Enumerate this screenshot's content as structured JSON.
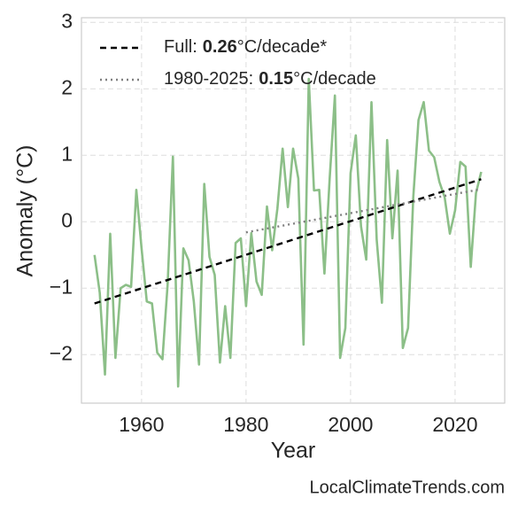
{
  "chart_data": {
    "type": "line",
    "xlabel": "Year",
    "ylabel": "Anomaly (°C)",
    "watermark": "LocalClimateTrends.com",
    "xlim": [
      1948.5,
      2029.5
    ],
    "ylim": [
      -2.73,
      3.07
    ],
    "xticks": [
      1960,
      1980,
      2000,
      2020
    ],
    "yticks": [
      {
        "value": -2,
        "label": "−2"
      },
      {
        "value": -1,
        "label": "−1"
      },
      0,
      1,
      2,
      3
    ],
    "grid": true,
    "x": [
      1951,
      1952,
      1953,
      1954,
      1955,
      1956,
      1957,
      1958,
      1959,
      1960,
      1961,
      1962,
      1963,
      1964,
      1965,
      1966,
      1967,
      1968,
      1969,
      1970,
      1971,
      1972,
      1973,
      1974,
      1975,
      1976,
      1977,
      1978,
      1979,
      1980,
      1981,
      1982,
      1983,
      1984,
      1985,
      1986,
      1987,
      1988,
      1989,
      1990,
      1991,
      1992,
      1993,
      1994,
      1995,
      1996,
      1997,
      1998,
      1999,
      2000,
      2001,
      2002,
      2003,
      2004,
      2005,
      2006,
      2007,
      2008,
      2009,
      2010,
      2011,
      2012,
      2013,
      2014,
      2015,
      2016,
      2017,
      2018,
      2019,
      2020,
      2021,
      2022,
      2023,
      2024,
      2025
    ],
    "series": [
      {
        "color": "#8cbf88",
        "values": [
          -0.5,
          -1.07,
          -2.3,
          -0.18,
          -2.05,
          -1.0,
          -0.95,
          -0.98,
          0.48,
          -0.4,
          -1.2,
          -1.23,
          -1.97,
          -2.07,
          -0.93,
          0.98,
          -2.48,
          -0.4,
          -0.58,
          -1.2,
          -2.15,
          0.57,
          -0.53,
          -0.8,
          -2.12,
          -1.27,
          -2.05,
          -0.32,
          -0.25,
          -1.27,
          -0.17,
          -0.9,
          -1.1,
          0.23,
          -0.43,
          0.2,
          1.1,
          0.22,
          1.1,
          0.65,
          -1.85,
          2.15,
          0.47,
          0.48,
          -0.78,
          0.65,
          1.9,
          -2.05,
          -1.6,
          0.73,
          1.3,
          -0.07,
          -0.57,
          1.8,
          -0.27,
          -1.22,
          1.23,
          -0.25,
          0.77,
          -1.9,
          -1.6,
          0.37,
          1.53,
          1.8,
          1.07,
          0.97,
          0.6,
          0.37,
          -0.18,
          0.17,
          0.9,
          0.83,
          -0.68,
          0.43,
          0.75
        ]
      }
    ],
    "trends": [
      {
        "legend": {
          "prefix": "Full:",
          "rate": "0.26",
          "unit": "°C/decade*"
        },
        "color": "#000000",
        "dash": "7 5",
        "x": [
          1951,
          2025
        ],
        "values": [
          -1.23,
          0.64
        ]
      },
      {
        "legend": {
          "prefix": "1980-2025:",
          "rate": "0.15",
          "unit": "°C/decade"
        },
        "color": "#808080",
        "dash": "2 4",
        "x": [
          1980,
          2025
        ],
        "values": [
          -0.16,
          0.49
        ]
      }
    ]
  }
}
